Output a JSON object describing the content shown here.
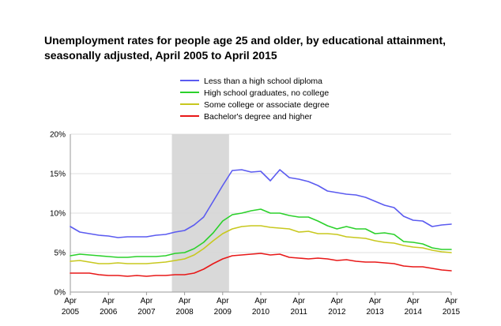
{
  "chart_data": {
    "type": "line",
    "title": "Unemployment rates for people age 25 and older, by educational attainment, seasonally adjusted, April 2005 to April 2015",
    "x_tick_labels": [
      {
        "month": "Apr",
        "year": "2005"
      },
      {
        "month": "Apr",
        "year": "2006"
      },
      {
        "month": "Apr",
        "year": "2007"
      },
      {
        "month": "Apr",
        "year": "2008"
      },
      {
        "month": "Apr",
        "year": "2009"
      },
      {
        "month": "Apr",
        "year": "2010"
      },
      {
        "month": "Apr",
        "year": "2011"
      },
      {
        "month": "Apr",
        "year": "2012"
      },
      {
        "month": "Apr",
        "year": "2013"
      },
      {
        "month": "Apr",
        "year": "2014"
      },
      {
        "month": "Apr",
        "year": "2015"
      }
    ],
    "y_tick_labels": [
      "0%",
      "5%",
      "10%",
      "15%",
      "20%"
    ],
    "ylim": [
      0,
      20
    ],
    "xlim": [
      "2005-04",
      "2015-04"
    ],
    "grid": "horizontal",
    "legend_position": "top",
    "recession_band": {
      "start": "2007-12",
      "end": "2009-06",
      "color": "#d9d9d9"
    },
    "series": [
      {
        "name": "Less than a high school diploma",
        "color": "#5b5bf0",
        "points": [
          [
            "2005-04",
            8.3
          ],
          [
            "2005-07",
            7.6
          ],
          [
            "2005-10",
            7.4
          ],
          [
            "2006-01",
            7.2
          ],
          [
            "2006-04",
            7.1
          ],
          [
            "2006-07",
            6.9
          ],
          [
            "2006-10",
            7.0
          ],
          [
            "2007-01",
            7.0
          ],
          [
            "2007-04",
            7.0
          ],
          [
            "2007-07",
            7.2
          ],
          [
            "2007-10",
            7.3
          ],
          [
            "2008-01",
            7.6
          ],
          [
            "2008-04",
            7.8
          ],
          [
            "2008-07",
            8.5
          ],
          [
            "2008-10",
            9.5
          ],
          [
            "2009-01",
            11.5
          ],
          [
            "2009-04",
            13.5
          ],
          [
            "2009-07",
            15.4
          ],
          [
            "2009-10",
            15.5
          ],
          [
            "2010-01",
            15.2
          ],
          [
            "2010-04",
            15.3
          ],
          [
            "2010-07",
            14.1
          ],
          [
            "2010-10",
            15.5
          ],
          [
            "2011-01",
            14.5
          ],
          [
            "2011-04",
            14.3
          ],
          [
            "2011-07",
            14.0
          ],
          [
            "2011-10",
            13.5
          ],
          [
            "2012-01",
            12.8
          ],
          [
            "2012-04",
            12.6
          ],
          [
            "2012-07",
            12.4
          ],
          [
            "2012-10",
            12.3
          ],
          [
            "2013-01",
            12.0
          ],
          [
            "2013-04",
            11.5
          ],
          [
            "2013-07",
            11.0
          ],
          [
            "2013-10",
            10.7
          ],
          [
            "2014-01",
            9.6
          ],
          [
            "2014-04",
            9.1
          ],
          [
            "2014-07",
            9.0
          ],
          [
            "2014-10",
            8.3
          ],
          [
            "2015-01",
            8.5
          ],
          [
            "2015-04",
            8.6
          ]
        ]
      },
      {
        "name": "High school graduates, no college",
        "color": "#2bd12b",
        "points": [
          [
            "2005-04",
            4.6
          ],
          [
            "2005-07",
            4.8
          ],
          [
            "2005-10",
            4.7
          ],
          [
            "2006-01",
            4.6
          ],
          [
            "2006-04",
            4.5
          ],
          [
            "2006-07",
            4.4
          ],
          [
            "2006-10",
            4.4
          ],
          [
            "2007-01",
            4.5
          ],
          [
            "2007-04",
            4.5
          ],
          [
            "2007-07",
            4.5
          ],
          [
            "2007-10",
            4.6
          ],
          [
            "2008-01",
            4.9
          ],
          [
            "2008-04",
            5.0
          ],
          [
            "2008-07",
            5.5
          ],
          [
            "2008-10",
            6.3
          ],
          [
            "2009-01",
            7.5
          ],
          [
            "2009-04",
            9.0
          ],
          [
            "2009-07",
            9.8
          ],
          [
            "2009-10",
            10.0
          ],
          [
            "2010-01",
            10.3
          ],
          [
            "2010-04",
            10.5
          ],
          [
            "2010-07",
            10.0
          ],
          [
            "2010-10",
            10.0
          ],
          [
            "2011-01",
            9.7
          ],
          [
            "2011-04",
            9.5
          ],
          [
            "2011-07",
            9.5
          ],
          [
            "2011-10",
            9.0
          ],
          [
            "2012-01",
            8.4
          ],
          [
            "2012-04",
            8.0
          ],
          [
            "2012-07",
            8.3
          ],
          [
            "2012-10",
            8.0
          ],
          [
            "2013-01",
            8.0
          ],
          [
            "2013-04",
            7.4
          ],
          [
            "2013-07",
            7.5
          ],
          [
            "2013-10",
            7.3
          ],
          [
            "2014-01",
            6.4
          ],
          [
            "2014-04",
            6.3
          ],
          [
            "2014-07",
            6.1
          ],
          [
            "2014-10",
            5.6
          ],
          [
            "2015-01",
            5.4
          ],
          [
            "2015-04",
            5.4
          ]
        ]
      },
      {
        "name": "Some college or associate degree",
        "color": "#c8c81e",
        "points": [
          [
            "2005-04",
            3.9
          ],
          [
            "2005-07",
            4.0
          ],
          [
            "2005-10",
            3.8
          ],
          [
            "2006-01",
            3.6
          ],
          [
            "2006-04",
            3.6
          ],
          [
            "2006-07",
            3.7
          ],
          [
            "2006-10",
            3.6
          ],
          [
            "2007-01",
            3.6
          ],
          [
            "2007-04",
            3.6
          ],
          [
            "2007-07",
            3.7
          ],
          [
            "2007-10",
            3.8
          ],
          [
            "2008-01",
            4.0
          ],
          [
            "2008-04",
            4.2
          ],
          [
            "2008-07",
            4.7
          ],
          [
            "2008-10",
            5.5
          ],
          [
            "2009-01",
            6.5
          ],
          [
            "2009-04",
            7.4
          ],
          [
            "2009-07",
            8.0
          ],
          [
            "2009-10",
            8.3
          ],
          [
            "2010-01",
            8.4
          ],
          [
            "2010-04",
            8.4
          ],
          [
            "2010-07",
            8.2
          ],
          [
            "2010-10",
            8.1
          ],
          [
            "2011-01",
            8.0
          ],
          [
            "2011-04",
            7.6
          ],
          [
            "2011-07",
            7.7
          ],
          [
            "2011-10",
            7.4
          ],
          [
            "2012-01",
            7.4
          ],
          [
            "2012-04",
            7.3
          ],
          [
            "2012-07",
            7.0
          ],
          [
            "2012-10",
            6.9
          ],
          [
            "2013-01",
            6.8
          ],
          [
            "2013-04",
            6.5
          ],
          [
            "2013-07",
            6.3
          ],
          [
            "2013-10",
            6.2
          ],
          [
            "2014-01",
            5.9
          ],
          [
            "2014-04",
            5.7
          ],
          [
            "2014-07",
            5.6
          ],
          [
            "2014-10",
            5.3
          ],
          [
            "2015-01",
            5.1
          ],
          [
            "2015-04",
            5.0
          ]
        ]
      },
      {
        "name": "Bachelor's degree and higher",
        "color": "#e81818",
        "points": [
          [
            "2005-04",
            2.4
          ],
          [
            "2005-07",
            2.4
          ],
          [
            "2005-10",
            2.4
          ],
          [
            "2006-01",
            2.2
          ],
          [
            "2006-04",
            2.1
          ],
          [
            "2006-07",
            2.1
          ],
          [
            "2006-10",
            2.0
          ],
          [
            "2007-01",
            2.1
          ],
          [
            "2007-04",
            2.0
          ],
          [
            "2007-07",
            2.1
          ],
          [
            "2007-10",
            2.1
          ],
          [
            "2008-01",
            2.2
          ],
          [
            "2008-04",
            2.2
          ],
          [
            "2008-07",
            2.4
          ],
          [
            "2008-10",
            2.9
          ],
          [
            "2009-01",
            3.6
          ],
          [
            "2009-04",
            4.2
          ],
          [
            "2009-07",
            4.6
          ],
          [
            "2009-10",
            4.7
          ],
          [
            "2010-01",
            4.8
          ],
          [
            "2010-04",
            4.9
          ],
          [
            "2010-07",
            4.7
          ],
          [
            "2010-10",
            4.8
          ],
          [
            "2011-01",
            4.4
          ],
          [
            "2011-04",
            4.3
          ],
          [
            "2011-07",
            4.2
          ],
          [
            "2011-10",
            4.3
          ],
          [
            "2012-01",
            4.2
          ],
          [
            "2012-04",
            4.0
          ],
          [
            "2012-07",
            4.1
          ],
          [
            "2012-10",
            3.9
          ],
          [
            "2013-01",
            3.8
          ],
          [
            "2013-04",
            3.8
          ],
          [
            "2013-07",
            3.7
          ],
          [
            "2013-10",
            3.6
          ],
          [
            "2014-01",
            3.3
          ],
          [
            "2014-04",
            3.2
          ],
          [
            "2014-07",
            3.2
          ],
          [
            "2014-10",
            3.0
          ],
          [
            "2015-01",
            2.8
          ],
          [
            "2015-04",
            2.7
          ]
        ]
      }
    ]
  }
}
